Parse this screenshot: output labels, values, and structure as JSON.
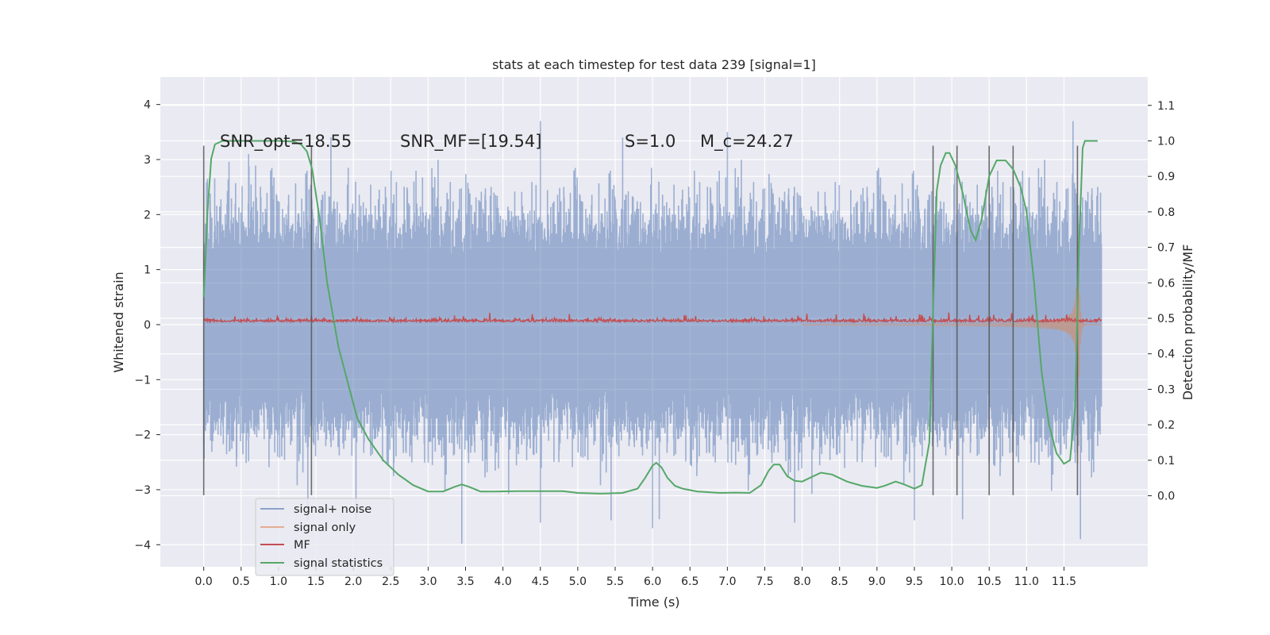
{
  "chart_data": {
    "type": "line",
    "title": "stats at each timestep for test data 239 [signal=1]",
    "xlabel": "Time (s)",
    "ylabel": "Whitened strain",
    "y2label": "Detection probability/MF",
    "xlim": [
      -0.58,
      12.62
    ],
    "ylim": [
      -4.4,
      4.5
    ],
    "y2lim": [
      -0.2,
      1.18
    ],
    "x_ticks": [
      0.0,
      0.5,
      1.0,
      1.5,
      2.0,
      2.5,
      3.0,
      3.5,
      4.0,
      4.5,
      5.0,
      5.5,
      6.0,
      6.5,
      7.0,
      7.5,
      8.0,
      8.5,
      9.0,
      9.5,
      10.0,
      10.5,
      11.0,
      11.5
    ],
    "x_tick_labels": [
      "0.0",
      "0.5",
      "1.0",
      "1.5",
      "2.0",
      "2.5",
      "3.0",
      "3.5",
      "4.0",
      "4.5",
      "5.0",
      "5.5",
      "6.0",
      "6.5",
      "7.0",
      "7.5",
      "8.0",
      "8.5",
      "9.0",
      "9.5",
      "10.0",
      "10.5",
      "11.0",
      "11.5"
    ],
    "y_ticks": [
      -4,
      -3,
      -2,
      -1,
      0,
      1,
      2,
      3,
      4
    ],
    "y_tick_labels": [
      "−4",
      "−3",
      "−2",
      "−1",
      "0",
      "1",
      "2",
      "3",
      "4"
    ],
    "y2_ticks": [
      0.0,
      0.1,
      0.2,
      0.3,
      0.4,
      0.5,
      0.6,
      0.7,
      0.8,
      0.9,
      1.0,
      1.1
    ],
    "y2_tick_labels": [
      "0.0",
      "0.1",
      "0.2",
      "0.3",
      "0.4",
      "0.5",
      "0.6",
      "0.7",
      "0.8",
      "0.9",
      "1.0",
      "1.1"
    ],
    "grid": true,
    "legend_position": "lower-left",
    "annotations": [
      {
        "text": "SNR_opt=18.55",
        "x": 0.2,
        "y": 3.2
      },
      {
        "text": "SNR_MF=[19.54]",
        "x": 2.6,
        "y": 3.2
      },
      {
        "text": "S=1.0",
        "x": 5.6,
        "y": 3.2
      },
      {
        "text": "M_c=24.27",
        "x": 6.6,
        "y": 3.2
      }
    ],
    "vertical_lines": [
      0.0,
      1.44,
      9.75,
      10.07,
      10.5,
      10.82,
      11.68
    ],
    "series": [
      {
        "name": "signal+ noise",
        "color": "#4c72b0",
        "alpha": 0.5,
        "axis": "left",
        "x_range": [
          0.0,
          12.0
        ],
        "envelope": [
          -2.0,
          2.0
        ],
        "peak_min": -3.98,
        "peak_max": 3.7
      },
      {
        "name": "signal only",
        "color": "#dd8452",
        "alpha": 0.5,
        "axis": "left",
        "note_chirp_peak": {
          "x": 11.68,
          "min": -3.7,
          "max": 4.13
        }
      },
      {
        "name": "MF",
        "color": "#c44e52",
        "axis": "left",
        "baseline": 0.05
      },
      {
        "name": "signal statistics",
        "color": "#55a868",
        "axis": "right",
        "x": [
          0.0,
          0.05,
          0.1,
          0.15,
          0.25,
          0.5,
          0.8,
          1.0,
          1.2,
          1.3,
          1.38,
          1.45,
          1.55,
          1.65,
          1.8,
          1.95,
          2.05,
          2.2,
          2.4,
          2.6,
          2.8,
          3.0,
          3.2,
          3.35,
          3.45,
          3.55,
          3.7,
          3.9,
          4.2,
          4.5,
          4.8,
          5.0,
          5.3,
          5.6,
          5.8,
          5.9,
          6.0,
          6.05,
          6.12,
          6.2,
          6.3,
          6.4,
          6.6,
          6.9,
          7.1,
          7.3,
          7.45,
          7.55,
          7.62,
          7.7,
          7.8,
          7.9,
          8.0,
          8.1,
          8.25,
          8.4,
          8.6,
          8.8,
          9.0,
          9.1,
          9.25,
          9.35,
          9.5,
          9.6,
          9.7,
          9.75,
          9.8,
          9.85,
          9.92,
          9.97,
          10.05,
          10.15,
          10.25,
          10.32,
          10.4,
          10.5,
          10.6,
          10.72,
          10.82,
          10.92,
          11.0,
          11.1,
          11.2,
          11.3,
          11.4,
          11.5,
          11.58,
          11.65,
          11.7,
          11.75,
          11.78,
          11.82,
          11.9,
          11.95
        ],
        "y": [
          0.56,
          0.8,
          0.95,
          0.99,
          1.0,
          1.0,
          1.0,
          1.0,
          0.998,
          0.99,
          0.97,
          0.92,
          0.78,
          0.6,
          0.42,
          0.3,
          0.22,
          0.16,
          0.1,
          0.06,
          0.03,
          0.012,
          0.012,
          0.025,
          0.032,
          0.025,
          0.012,
          0.012,
          0.013,
          0.013,
          0.013,
          0.008,
          0.006,
          0.008,
          0.02,
          0.05,
          0.085,
          0.093,
          0.08,
          0.05,
          0.028,
          0.02,
          0.012,
          0.008,
          0.009,
          0.008,
          0.03,
          0.07,
          0.088,
          0.088,
          0.055,
          0.042,
          0.04,
          0.05,
          0.065,
          0.06,
          0.04,
          0.028,
          0.022,
          0.028,
          0.04,
          0.033,
          0.02,
          0.03,
          0.15,
          0.52,
          0.86,
          0.93,
          0.966,
          0.966,
          0.93,
          0.85,
          0.75,
          0.72,
          0.78,
          0.9,
          0.945,
          0.945,
          0.92,
          0.87,
          0.8,
          0.6,
          0.35,
          0.2,
          0.12,
          0.09,
          0.1,
          0.25,
          0.7,
          0.98,
          1.0,
          1.0,
          1.0,
          1.0
        ]
      }
    ]
  }
}
